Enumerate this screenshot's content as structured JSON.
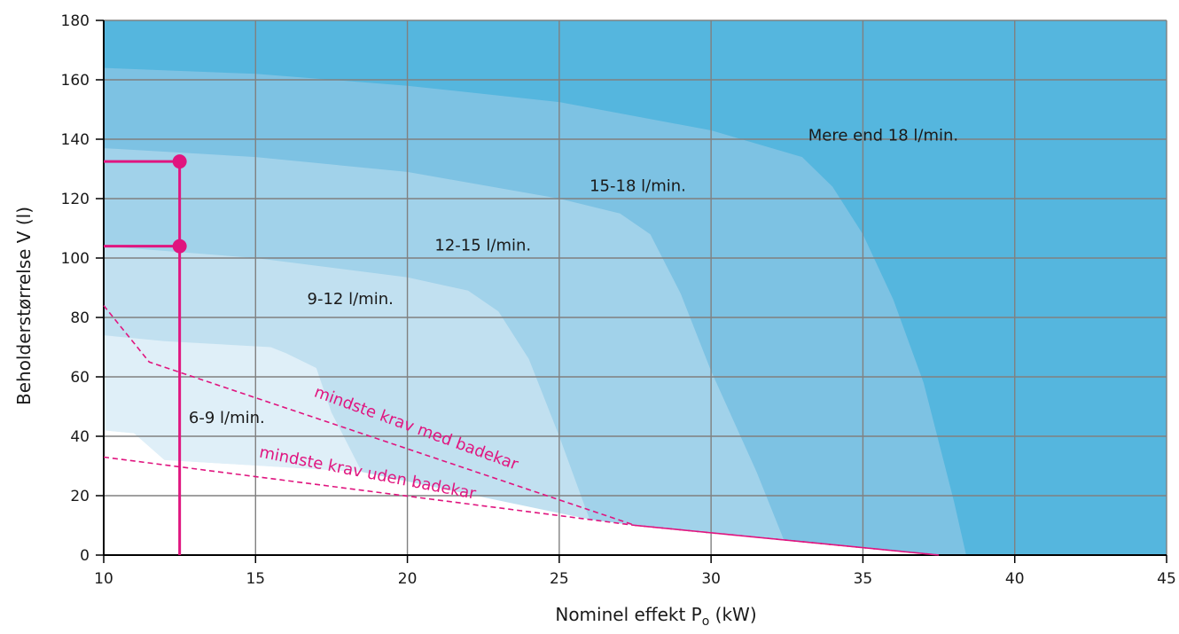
{
  "chart_data": {
    "type": "area",
    "title": "",
    "xlabel": "Nominel effekt P",
    "xlabel_subscript": "o",
    "xlabel_unit": " (kW)",
    "ylabel": "Beholderstørrelse V (l)",
    "xlim": [
      10,
      45
    ],
    "ylim": [
      0,
      180
    ],
    "x_ticks": [
      10,
      15,
      20,
      25,
      30,
      35,
      40,
      45
    ],
    "y_ticks": [
      0,
      20,
      40,
      60,
      80,
      100,
      120,
      140,
      160,
      180
    ],
    "grid": true,
    "colors": {
      "region_18plus": "#55b6de",
      "region_15_18": "#7dc2e3",
      "region_12_15": "#a1d2ea",
      "region_9_12": "#c1e0f0",
      "region_6_9": "#dfeff8",
      "grid": "#808080",
      "axis": "#000000",
      "highlight": "#e0157f"
    },
    "regions": [
      {
        "name": "Mere end 18 l/min.",
        "label_at": [
          33.2,
          139.5
        ],
        "boundary": [
          [
            10,
            180
          ],
          [
            45,
            180
          ]
        ]
      },
      {
        "name": "15-18 l/min.",
        "label_at": [
          26,
          122.5
        ],
        "boundary": [
          [
            10,
            164
          ],
          [
            15,
            162
          ],
          [
            20,
            158
          ],
          [
            25,
            152.5
          ],
          [
            30,
            143
          ],
          [
            32,
            137
          ],
          [
            33,
            134
          ],
          [
            34,
            124
          ],
          [
            35,
            108
          ],
          [
            36,
            86
          ],
          [
            37,
            58
          ],
          [
            38,
            18
          ],
          [
            38.4,
            0
          ]
        ]
      },
      {
        "name": "12-15 l/min.",
        "label_at": [
          20.9,
          102.5
        ],
        "boundary": [
          [
            10,
            137
          ],
          [
            15,
            134
          ],
          [
            20,
            129
          ],
          [
            25,
            120
          ],
          [
            27,
            115
          ],
          [
            28,
            108
          ],
          [
            29,
            88
          ],
          [
            30,
            62
          ],
          [
            31.5,
            28
          ],
          [
            32.4,
            5
          ],
          [
            32.4,
            0
          ]
        ]
      },
      {
        "name": "9-12 l/min.",
        "label_at": [
          16.7,
          84.5
        ],
        "boundary": [
          [
            10,
            104
          ],
          [
            15,
            100
          ],
          [
            20,
            93.5
          ],
          [
            22,
            89
          ],
          [
            23,
            82
          ],
          [
            24,
            66
          ],
          [
            25,
            40
          ],
          [
            26,
            12
          ],
          [
            26,
            0
          ]
        ]
      },
      {
        "name": "6-9 l/min.",
        "label_at": [
          12.8,
          44.5
        ],
        "boundary": [
          [
            10,
            74
          ],
          [
            12,
            72
          ],
          [
            15.5,
            70
          ],
          [
            16,
            68
          ],
          [
            17,
            63
          ],
          [
            17.5,
            48
          ],
          [
            18,
            35
          ],
          [
            18.5,
            28
          ]
        ]
      }
    ],
    "requirement_lines": [
      {
        "name": "mindste krav med badekar",
        "points": [
          [
            10,
            84
          ],
          [
            11.5,
            65
          ],
          [
            27.5,
            10
          ],
          [
            37.5,
            0
          ]
        ],
        "label_at": [
          16.9,
          53.5
        ],
        "label_angle": 20
      },
      {
        "name": "mindste krav uden badekar",
        "points": [
          [
            10,
            33
          ],
          [
            27.5,
            10
          ],
          [
            37.5,
            0
          ]
        ],
        "label_at": [
          15.1,
          33
        ],
        "label_angle": 11
      }
    ],
    "highlight": {
      "vertical_x": 12.5,
      "points": [
        [
          12.5,
          132.5
        ],
        [
          12.5,
          104
        ]
      ]
    }
  }
}
